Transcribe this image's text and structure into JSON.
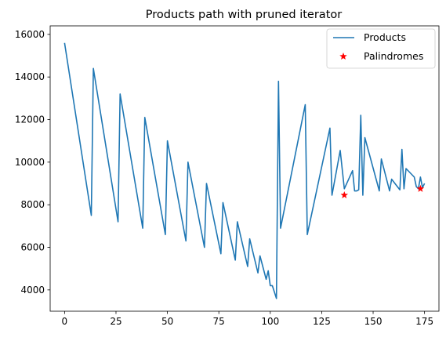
{
  "chart_data": {
    "type": "line",
    "title": "Products path with pruned iterator",
    "xlabel": "",
    "ylabel": "",
    "xlim": [
      -7,
      182
    ],
    "ylim": [
      3000,
      16400
    ],
    "x_ticks": [
      0,
      25,
      50,
      75,
      100,
      125,
      150,
      175
    ],
    "y_ticks": [
      4000,
      6000,
      8000,
      10000,
      12000,
      14000,
      16000
    ],
    "grid": false,
    "legend_position": "top-right",
    "series": [
      {
        "name": "Products",
        "type": "line",
        "color": "#1f77b4",
        "x": [
          0,
          13,
          14,
          26,
          27,
          38,
          39,
          49,
          50,
          59,
          60,
          68,
          69,
          76,
          77,
          83,
          84,
          89,
          90,
          94,
          95,
          98,
          99,
          100,
          101,
          102,
          103,
          104,
          105,
          117,
          118,
          129,
          130,
          134,
          136,
          140,
          141,
          142,
          143,
          144,
          145,
          146,
          153,
          154,
          158,
          159,
          163,
          164,
          165,
          166,
          170,
          171,
          172,
          173,
          174,
          175
        ],
        "y": [
          15600,
          7500,
          14400,
          7200,
          13200,
          6900,
          12100,
          6600,
          11000,
          6300,
          10000,
          6000,
          9000,
          5700,
          8100,
          5400,
          7200,
          5100,
          6400,
          4800,
          5600,
          4500,
          4900,
          4200,
          4200,
          3900,
          3600,
          13800,
          6900,
          12700,
          6600,
          11600,
          8450,
          10550,
          8750,
          9600,
          8650,
          8650,
          8700,
          12200,
          8450,
          11150,
          8650,
          10150,
          8650,
          9200,
          8700,
          10600,
          8750,
          9700,
          9300,
          8850,
          8750,
          9300,
          8800,
          9000
        ]
      },
      {
        "name": "Palindromes",
        "type": "scatter",
        "marker": "star",
        "color": "#ff0000",
        "x": [
          136,
          173
        ],
        "y": [
          8450,
          8750
        ]
      }
    ]
  }
}
